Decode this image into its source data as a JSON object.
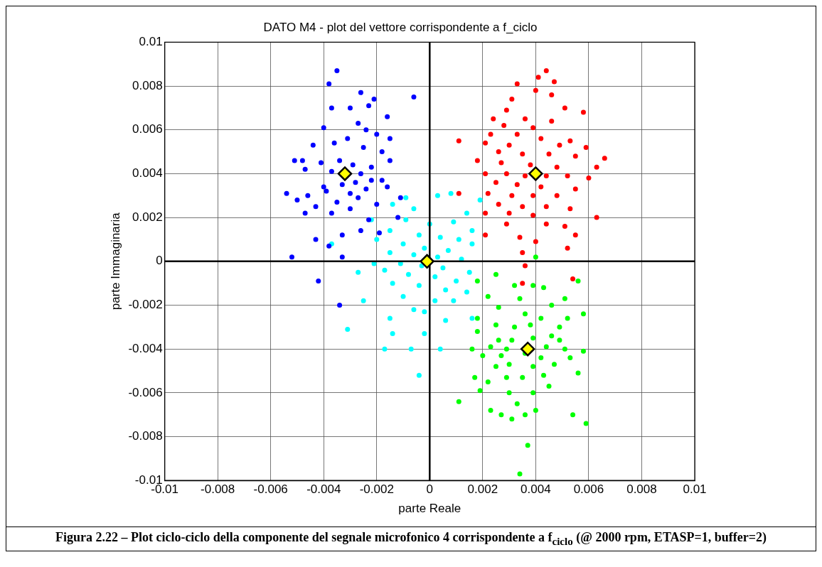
{
  "chart_data": {
    "type": "scatter",
    "title": "DATO M4 - plot del vettore corrispondente a f_ciclo",
    "xlabel": "parte Reale",
    "ylabel": "parte Immaginaria",
    "xlim": [
      -0.01,
      0.01
    ],
    "ylim": [
      -0.01,
      0.01
    ],
    "xticks": [
      -0.01,
      -0.008,
      -0.006,
      -0.004,
      -0.002,
      0,
      0.002,
      0.004,
      0.006,
      0.008,
      0.01
    ],
    "yticks": [
      -0.01,
      -0.008,
      -0.006,
      -0.004,
      -0.002,
      0,
      0.002,
      0.004,
      0.006,
      0.008,
      0.01
    ],
    "grid": true,
    "legend": false,
    "marker": "circle",
    "annotations": [
      "Figura 2.22 –   Plot ciclo-ciclo della componente del segnale microfonico 4 corrispondente a f$_{ciclo}$ (@ 2000 rpm, ETASP=1, buffer=2)"
    ],
    "series": [
      {
        "color": "#0000ff",
        "x": [
          -0.0035,
          -0.0038,
          -0.0026,
          -0.0006,
          -0.0021,
          -0.0023,
          -0.003,
          -0.0037,
          -0.0016,
          -0.004,
          -0.0027,
          -0.0024,
          -0.0031,
          -0.002,
          -0.0015,
          -0.0044,
          -0.0036,
          -0.0025,
          -0.0018,
          -0.0051,
          -0.0048,
          -0.0041,
          -0.0034,
          -0.0029,
          -0.0022,
          -0.0015,
          -0.0047,
          -0.0037,
          -0.0026,
          -0.0022,
          -0.004,
          -0.0033,
          -0.0028,
          -0.0018,
          -0.0054,
          -0.0046,
          -0.0039,
          -0.003,
          -0.0024,
          -0.0016,
          -0.005,
          -0.0043,
          -0.0035,
          -0.0027,
          -0.002,
          -0.0011,
          -0.0047,
          -0.0037,
          -0.003,
          -0.0023,
          -0.0012,
          -0.0026,
          -0.0033,
          -0.0019,
          -0.0043,
          -0.0038,
          -0.0052,
          -0.0033,
          -0.0042,
          -0.0034
        ],
        "values": [
          0.0087,
          0.0081,
          0.0077,
          0.0075,
          0.0074,
          0.0071,
          0.007,
          0.007,
          0.0066,
          0.0061,
          0.0063,
          0.006,
          0.0056,
          0.0058,
          0.0056,
          0.0053,
          0.0054,
          0.0052,
          0.005,
          0.0046,
          0.0046,
          0.0045,
          0.0046,
          0.0044,
          0.0043,
          0.0046,
          0.0042,
          0.0041,
          0.004,
          0.0037,
          0.0034,
          0.0035,
          0.0036,
          0.0037,
          0.0031,
          0.003,
          0.0032,
          0.0031,
          0.0033,
          0.0034,
          0.0028,
          0.0025,
          0.0027,
          0.0029,
          0.0026,
          0.0029,
          0.0022,
          0.0022,
          0.0024,
          0.0019,
          0.002,
          0.0014,
          0.0012,
          0.0013,
          0.001,
          0.0007,
          0.0002,
          0.0002,
          -0.0009,
          -0.002
        ]
      },
      {
        "color": "#ff0000",
        "x": [
          0.0044,
          0.0041,
          0.0047,
          0.0033,
          0.004,
          0.0046,
          0.0031,
          0.0051,
          0.0029,
          0.0058,
          0.0024,
          0.0036,
          0.0046,
          0.0028,
          0.0039,
          0.0023,
          0.0033,
          0.0042,
          0.0053,
          0.0011,
          0.0021,
          0.003,
          0.0049,
          0.0059,
          0.0026,
          0.0035,
          0.0045,
          0.0055,
          0.0066,
          0.0018,
          0.0027,
          0.0038,
          0.0048,
          0.0063,
          0.0021,
          0.0029,
          0.0036,
          0.0044,
          0.0052,
          0.006,
          0.0025,
          0.0033,
          0.0042,
          0.0055,
          0.0011,
          0.0022,
          0.0031,
          0.0039,
          0.0048,
          0.0026,
          0.0035,
          0.0044,
          0.0053,
          0.0021,
          0.003,
          0.0039,
          0.0063,
          0.0029,
          0.0044,
          0.0051,
          0.0021,
          0.0034,
          0.004,
          0.0055,
          0.0035,
          0.0052,
          0.0036,
          0.0054,
          0.0035
        ],
        "values": [
          0.0087,
          0.0084,
          0.0082,
          0.0081,
          0.0078,
          0.0076,
          0.0074,
          0.007,
          0.0069,
          0.0068,
          0.0065,
          0.0065,
          0.0064,
          0.0062,
          0.0061,
          0.0058,
          0.0058,
          0.0056,
          0.0055,
          0.0055,
          0.0054,
          0.0053,
          0.0053,
          0.0052,
          0.005,
          0.0049,
          0.0049,
          0.0048,
          0.0047,
          0.0046,
          0.0045,
          0.0044,
          0.0043,
          0.0043,
          0.004,
          0.004,
          0.0039,
          0.0039,
          0.0039,
          0.0038,
          0.0036,
          0.0035,
          0.0034,
          0.0033,
          0.0031,
          0.0031,
          0.003,
          0.003,
          0.003,
          0.0026,
          0.0025,
          0.0025,
          0.0024,
          0.0022,
          0.0022,
          0.0021,
          0.002,
          0.0017,
          0.0017,
          0.0016,
          0.0012,
          0.0011,
          0.0009,
          0.0012,
          0.0004,
          0.0006,
          -0.0002,
          -0.0008,
          -0.001
        ]
      },
      {
        "color": "#00ffff",
        "x": [
          -0.0009,
          0.0003,
          0.0008,
          0.0019,
          -0.0014,
          -0.0006,
          0.0014,
          -0.0022,
          -0.0009,
          0,
          0.0009,
          0.0016,
          -0.0015,
          -0.0004,
          0.0004,
          0.0011,
          -0.002,
          -0.001,
          -0.0002,
          0.0007,
          0.0016,
          -0.0015,
          -0.0006,
          0.0003,
          0.0012,
          -0.0021,
          -0.0011,
          -0.0003,
          0.0005,
          0.0015,
          -0.0027,
          -0.0017,
          -0.0008,
          0.0002,
          0.001,
          -0.0014,
          -0.0004,
          0.0006,
          0.0014,
          -0.0025,
          -0.001,
          0.0002,
          0.0009,
          -0.0006,
          -0.0002,
          0.0016,
          -0.0031,
          -0.0015,
          -0.0014,
          -0.0002,
          -0.0017,
          -0.0007,
          0.0004,
          -0.0004,
          -0.0037,
          0.0006
        ],
        "values": [
          0.0029,
          0.003,
          0.0031,
          0.0028,
          0.0026,
          0.0024,
          0.0022,
          0.0019,
          0.0019,
          0.0017,
          0.0018,
          0.0014,
          0.0014,
          0.0012,
          0.0011,
          0.001,
          0.001,
          0.0008,
          0.0006,
          0.0005,
          0.0008,
          0.0004,
          0.0003,
          0.0002,
          0.0001,
          -0.0001,
          -0.0001,
          -0.0002,
          -0.0003,
          -0.0005,
          -0.0005,
          -0.0004,
          -0.0006,
          -0.0007,
          -0.0009,
          -0.001,
          -0.0011,
          -0.0013,
          -0.0014,
          -0.0018,
          -0.0016,
          -0.0018,
          -0.0018,
          -0.0022,
          -0.0023,
          -0.0026,
          -0.0031,
          -0.0026,
          -0.0033,
          -0.0033,
          -0.004,
          -0.004,
          -0.004,
          -0.0052,
          0.0008,
          -0.0027
        ]
      },
      {
        "color": "#00ff00",
        "x": [
          0.004,
          0.0025,
          0.0018,
          0.0056,
          0.0032,
          0.0039,
          0.0043,
          0.0022,
          0.0034,
          0.0051,
          0.0026,
          0.0046,
          0.0058,
          0.0018,
          0.0036,
          0.0042,
          0.0052,
          0.0025,
          0.0032,
          0.0038,
          0.0049,
          0.0018,
          0.0046,
          0.0026,
          0.0031,
          0.0039,
          0.0049,
          0.0016,
          0.0023,
          0.0029,
          0.0044,
          0.0051,
          0.0058,
          0.002,
          0.0027,
          0.0036,
          0.0042,
          0.0053,
          0.0025,
          0.003,
          0.0039,
          0.0047,
          0.0017,
          0.0022,
          0.0029,
          0.0035,
          0.0043,
          0.0056,
          0.0019,
          0.003,
          0.0039,
          0.0045,
          0.0011,
          0.0023,
          0.0033,
          0.0027,
          0.0031,
          0.0036,
          0.0054,
          0.0059,
          0.004,
          0.0037,
          0.0034
        ],
        "values": [
          0.0002,
          -0.0006,
          -0.0009,
          -0.0009,
          -0.0011,
          -0.0011,
          -0.0012,
          -0.0016,
          -0.0017,
          -0.0017,
          -0.0021,
          -0.002,
          -0.0024,
          -0.0026,
          -0.0024,
          -0.0026,
          -0.0026,
          -0.0029,
          -0.003,
          -0.0029,
          -0.003,
          -0.0032,
          -0.0034,
          -0.0036,
          -0.0036,
          -0.0035,
          -0.0036,
          -0.004,
          -0.0039,
          -0.004,
          -0.0039,
          -0.004,
          -0.0041,
          -0.0043,
          -0.0043,
          -0.0042,
          -0.0044,
          -0.0044,
          -0.0048,
          -0.0047,
          -0.0048,
          -0.0047,
          -0.0053,
          -0.0055,
          -0.0053,
          -0.0053,
          -0.0052,
          -0.0051,
          -0.0059,
          -0.006,
          -0.006,
          -0.0057,
          -0.0064,
          -0.0068,
          -0.0065,
          -0.007,
          -0.0072,
          -0.007,
          -0.007,
          -0.0074,
          -0.0068,
          -0.0084,
          -0.0097
        ]
      },
      {
        "type": "line",
        "color": "#000000",
        "marker": "none",
        "x": [
          -0.01,
          0.01
        ],
        "values": [
          0,
          0
        ]
      },
      {
        "type": "line",
        "color": "#000000",
        "marker": "none",
        "x": [
          0,
          0
        ],
        "values": [
          -0.01,
          0.01
        ]
      },
      {
        "color": "#ffff00",
        "marker": "diamond",
        "x": [
          -0.0032,
          0.004,
          -0.0001,
          0.0037
        ],
        "values": [
          0.004,
          0.004,
          0,
          -0.004
        ]
      }
    ]
  }
}
